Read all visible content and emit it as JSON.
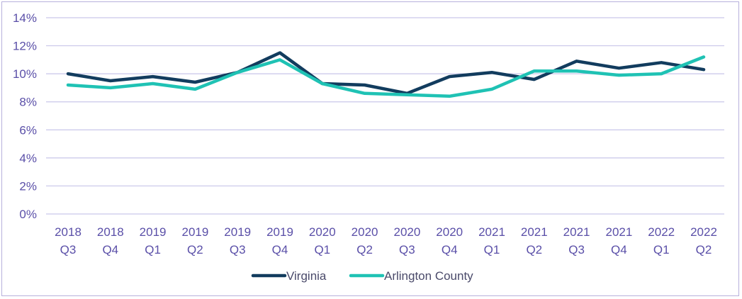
{
  "chart_data": {
    "type": "line",
    "title": "",
    "xlabel": "",
    "ylabel": "",
    "categories": [
      [
        "2018",
        "Q3"
      ],
      [
        "2018",
        "Q4"
      ],
      [
        "2019",
        "Q1"
      ],
      [
        "2019",
        "Q2"
      ],
      [
        "2019",
        "Q3"
      ],
      [
        "2019",
        "Q4"
      ],
      [
        "2020",
        "Q1"
      ],
      [
        "2020",
        "Q2"
      ],
      [
        "2020",
        "Q3"
      ],
      [
        "2020",
        "Q4"
      ],
      [
        "2021",
        "Q1"
      ],
      [
        "2021",
        "Q2"
      ],
      [
        "2021",
        "Q3"
      ],
      [
        "2021",
        "Q4"
      ],
      [
        "2022",
        "Q1"
      ],
      [
        "2022",
        "Q2"
      ]
    ],
    "ylim": [
      0,
      14
    ],
    "yticks": [
      0,
      2,
      4,
      6,
      8,
      10,
      12,
      14
    ],
    "ytick_labels": [
      "0%",
      "2%",
      "4%",
      "6%",
      "8%",
      "10%",
      "12%",
      "14%"
    ],
    "grid": true,
    "legend_position": "bottom-center",
    "series": [
      {
        "name": "Virginia",
        "color": "#123c5e",
        "values": [
          10.0,
          9.5,
          9.8,
          9.4,
          10.1,
          11.5,
          9.3,
          9.2,
          8.6,
          9.8,
          10.1,
          9.6,
          10.9,
          10.4,
          10.8,
          10.3
        ]
      },
      {
        "name": "Arlington County",
        "color": "#1fc2b4",
        "values": [
          9.2,
          9.0,
          9.3,
          8.9,
          10.1,
          11.0,
          9.3,
          8.6,
          8.5,
          8.4,
          8.9,
          10.2,
          10.2,
          9.9,
          10.0,
          11.2
        ]
      }
    ],
    "colors": {
      "grid": "#c9c6ea",
      "axis_text": "#5a4fa8"
    }
  }
}
